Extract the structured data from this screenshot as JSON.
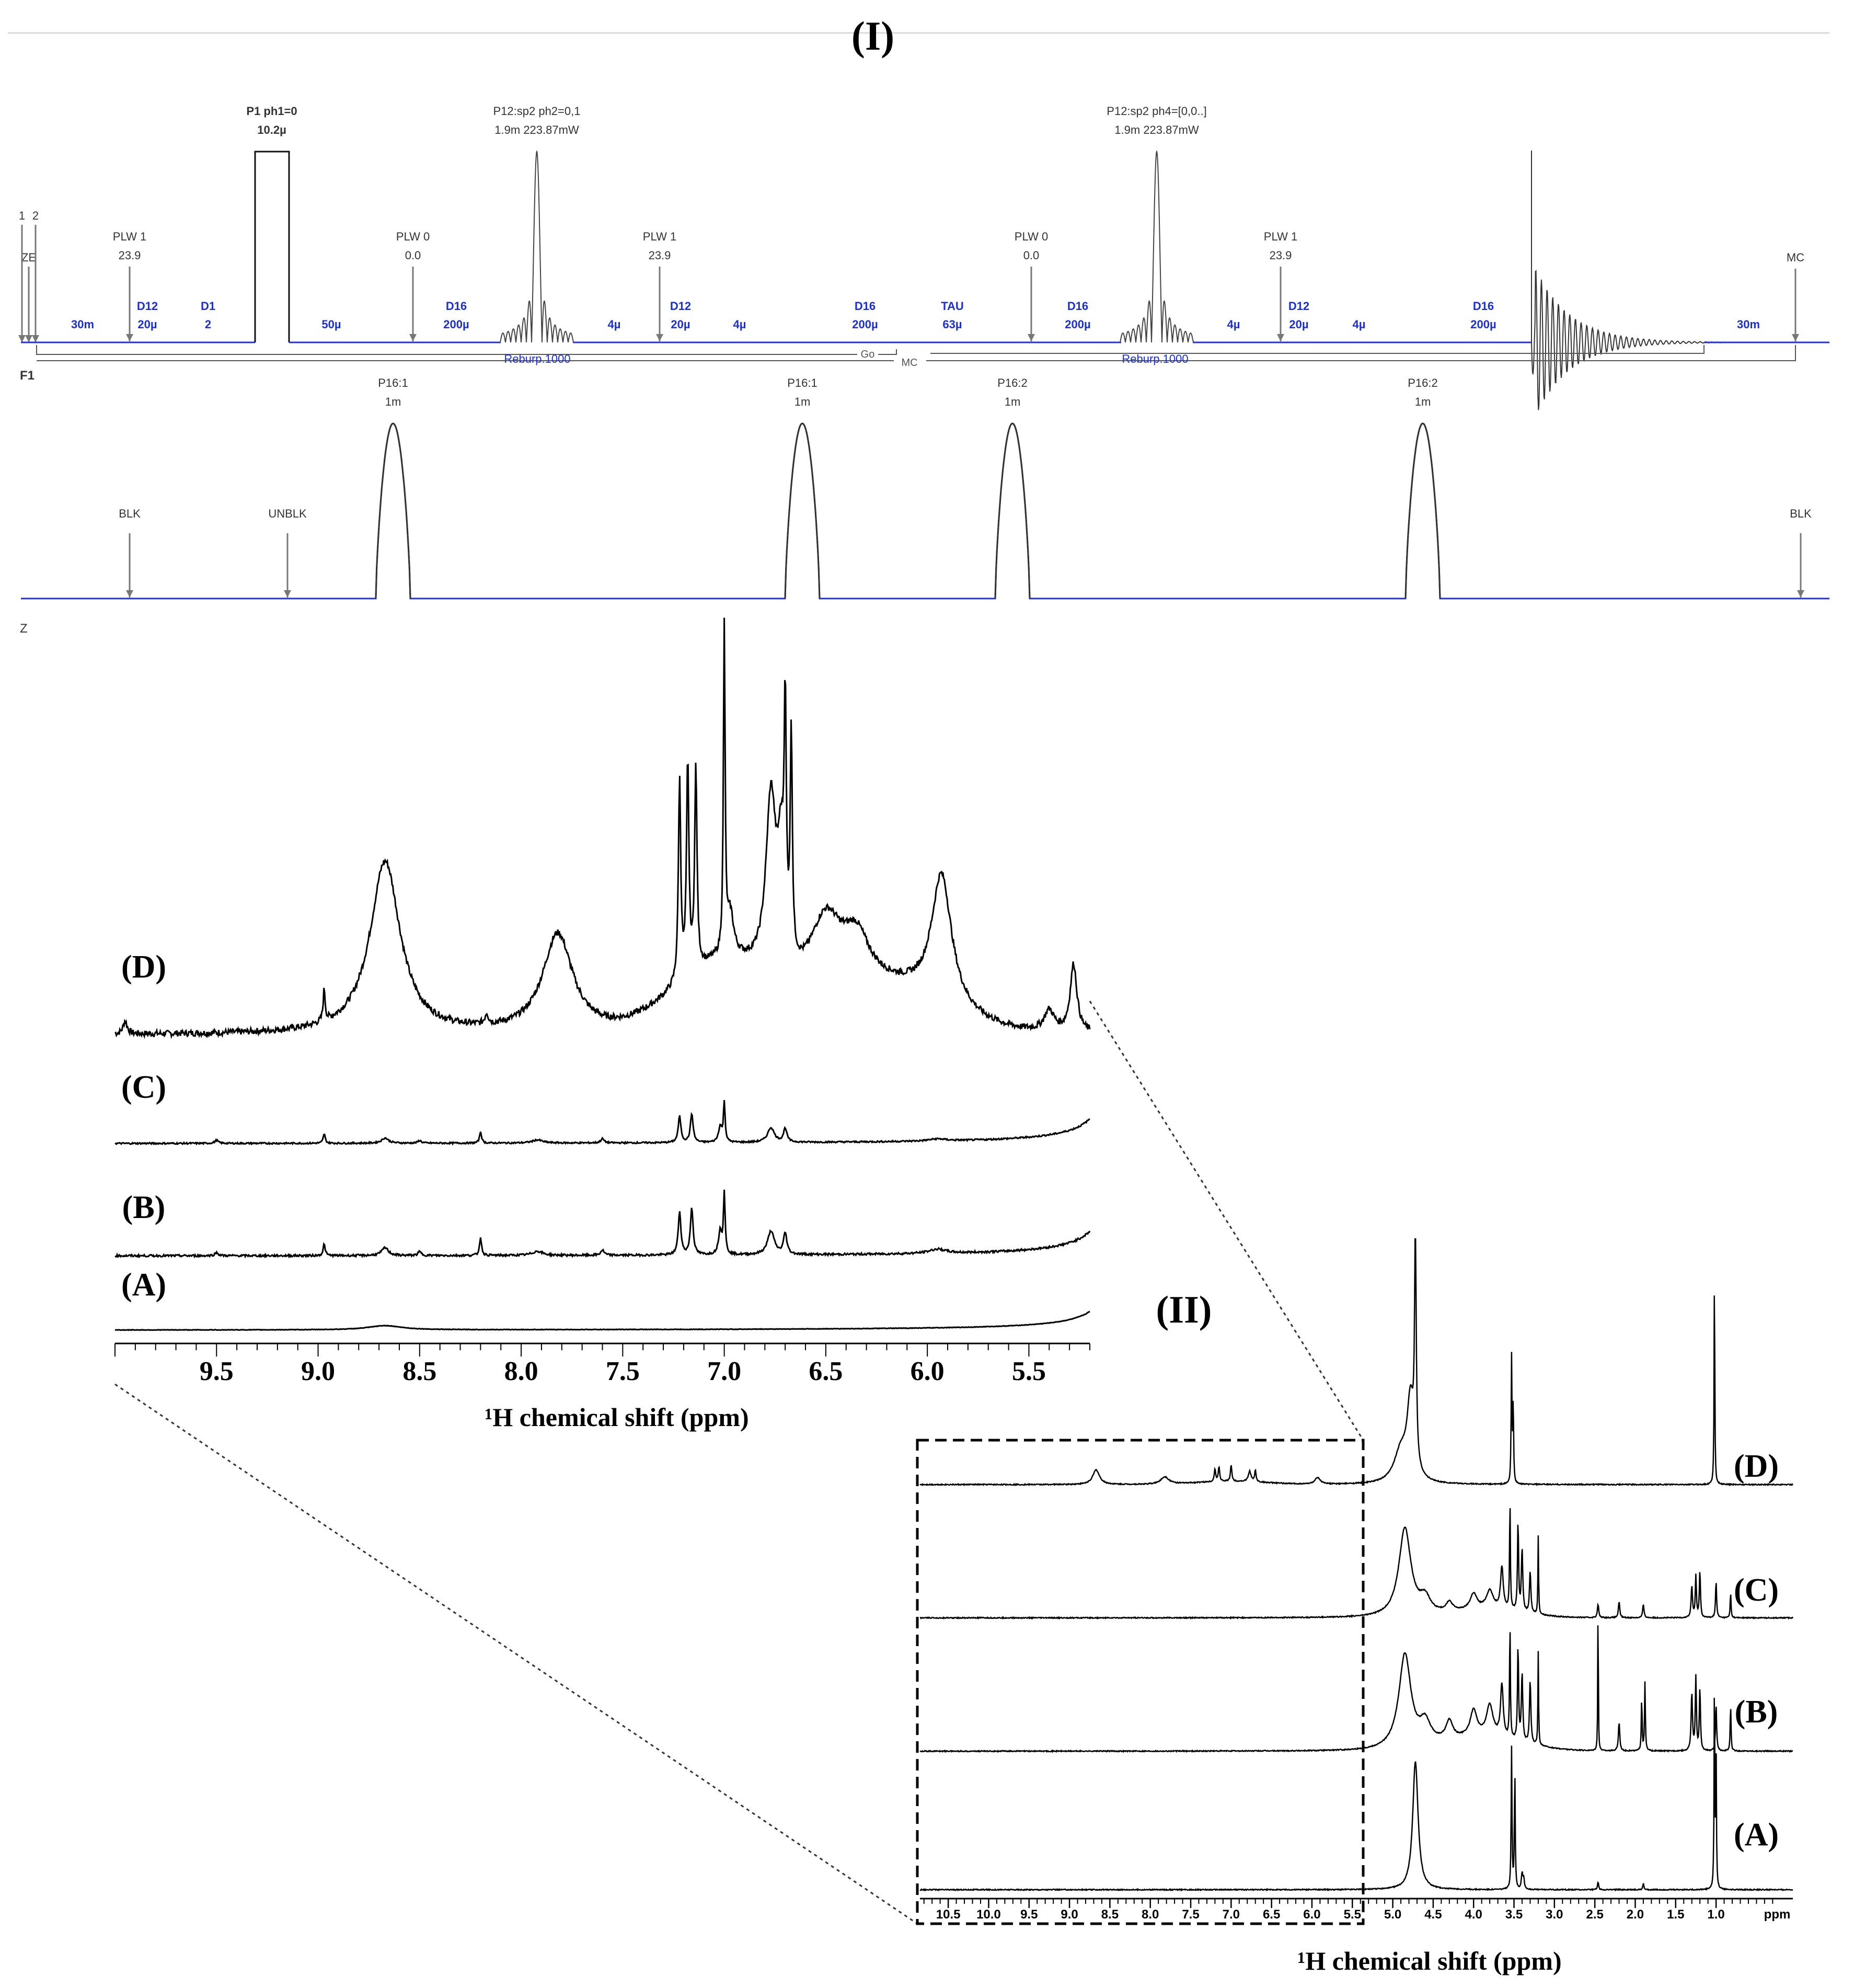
{
  "panel_labels": {
    "top": "(I)",
    "bottom": "(II)"
  },
  "pulse_sequence": {
    "channel_labels": {
      "f1": "F1",
      "z": "Z"
    },
    "start_markers": [
      "1",
      "2",
      "ZE"
    ],
    "f1_events": [
      {
        "id": "plw1-a",
        "line1": "PLW 1",
        "line2": "23.9"
      },
      {
        "id": "p1",
        "line1": "P1 ph1=0",
        "line2": "10.2µ"
      },
      {
        "id": "plw0-a",
        "line1": "PLW 0",
        "line2": "0.0"
      },
      {
        "id": "p12-a",
        "line1": "P12:sp2 ph2=0,1",
        "line2": "1.9m 223.87mW"
      },
      {
        "id": "plw1-b",
        "line1": "PLW 1",
        "line2": "23.9"
      },
      {
        "id": "plw0-b",
        "line1": "PLW 0",
        "line2": "0.0"
      },
      {
        "id": "p12-b",
        "line1": "P12:sp2 ph4=[0,0..]",
        "line2": "1.9m 223.87mW"
      },
      {
        "id": "plw1-c",
        "line1": "PLW 1",
        "line2": "23.9"
      },
      {
        "id": "mc-end",
        "line1": "MC",
        "line2": ""
      }
    ],
    "delays": [
      {
        "id": "d-30m-a",
        "line1": "",
        "line2": "30m"
      },
      {
        "id": "d12-a",
        "line1": "D12",
        "line2": "20µ"
      },
      {
        "id": "d1",
        "line1": "D1",
        "line2": "2"
      },
      {
        "id": "d-50u",
        "line1": "",
        "line2": "50µ"
      },
      {
        "id": "d16-a",
        "line1": "D16",
        "line2": "200µ"
      },
      {
        "id": "d-4u-a",
        "line1": "",
        "line2": "4µ"
      },
      {
        "id": "d12-b",
        "line1": "D12",
        "line2": "20µ"
      },
      {
        "id": "d-4u-b",
        "line1": "",
        "line2": "4µ"
      },
      {
        "id": "d16-b",
        "line1": "D16",
        "line2": "200µ"
      },
      {
        "id": "tau",
        "line1": "TAU",
        "line2": "63µ"
      },
      {
        "id": "d16-c",
        "line1": "D16",
        "line2": "200µ"
      },
      {
        "id": "d-4u-c",
        "line1": "",
        "line2": "4µ"
      },
      {
        "id": "d12-c",
        "line1": "D12",
        "line2": "20µ"
      },
      {
        "id": "d-4u-d",
        "line1": "",
        "line2": "4µ"
      },
      {
        "id": "d16-d",
        "line1": "D16",
        "line2": "200µ"
      },
      {
        "id": "d-30m-b",
        "line1": "",
        "line2": "30m"
      }
    ],
    "shape_labels": [
      "Reburp.1000",
      "Reburp.1000"
    ],
    "loop_labels": [
      "Go",
      "MC"
    ],
    "gradients": [
      {
        "line1": "P16:1",
        "line2": "1m"
      },
      {
        "line1": "P16:1",
        "line2": "1m"
      },
      {
        "line1": "P16:2",
        "line2": "1m"
      },
      {
        "line1": "P16:2",
        "line2": "1m"
      }
    ],
    "z_events": [
      "BLK",
      "UNBLK",
      "BLK"
    ],
    "colors": {
      "trace_blue": "#2233dd",
      "label_blue": "#1a2fd6",
      "ink": "#333333"
    }
  },
  "chart_data": [
    {
      "type": "line",
      "title": "",
      "xlabel": "¹H chemical shift (ppm)",
      "xlim": [
        10.0,
        5.2
      ],
      "x_reversed": true,
      "x_ticks": [
        "9.5",
        "9.0",
        "8.5",
        "8.0",
        "7.5",
        "7.0",
        "6.5",
        "6.0",
        "5.5"
      ],
      "series_labels": [
        "(D)",
        "(C)",
        "(B)",
        "(A)"
      ],
      "peaks_ppm": {
        "(D)": [
          9.95,
          8.97,
          8.67,
          7.82,
          7.22,
          7.17,
          7.14,
          7.0,
          6.77,
          6.7,
          6.68,
          5.93,
          5.28
        ],
        "(C)": [
          8.97,
          8.2,
          7.22,
          7.16,
          7.0,
          6.77,
          6.7
        ],
        "(B)": [
          8.97,
          8.2,
          7.22,
          7.16,
          7.0,
          6.77,
          6.7
        ],
        "(A)": [
          8.67
        ]
      }
    },
    {
      "type": "line",
      "title": "",
      "xlabel": "¹H chemical shift (ppm)",
      "xlim": [
        11.0,
        0.0
      ],
      "x_reversed": true,
      "x_unit_label": "ppm",
      "x_ticks": [
        "10.5",
        "10.0",
        "9.5",
        "9.0",
        "8.5",
        "8.0",
        "7.5",
        "7.0",
        "6.5",
        "6.0",
        "5.5",
        "5.0",
        "4.5",
        "4.0",
        "3.5",
        "3.0",
        "2.5",
        "2.0",
        "1.5",
        "1.0"
      ],
      "series_labels": [
        "(D)",
        "(C)",
        "(B)",
        "(A)"
      ],
      "peaks_ppm": {
        "(D)": [
          8.67,
          7.82,
          7.2,
          7.0,
          6.7,
          5.93,
          4.72,
          3.53,
          1.02
        ],
        "(C)": [
          4.85,
          3.6,
          3.4,
          3.2,
          2.46,
          2.2,
          1.9,
          1.3,
          1.2,
          0.8
        ],
        "(B)": [
          4.85,
          3.6,
          3.4,
          3.2,
          2.46,
          2.2,
          1.9,
          1.3,
          1.2,
          0.8
        ],
        "(A)": [
          4.72,
          3.53,
          3.4,
          2.46,
          1.9,
          1.02
        ]
      }
    }
  ]
}
